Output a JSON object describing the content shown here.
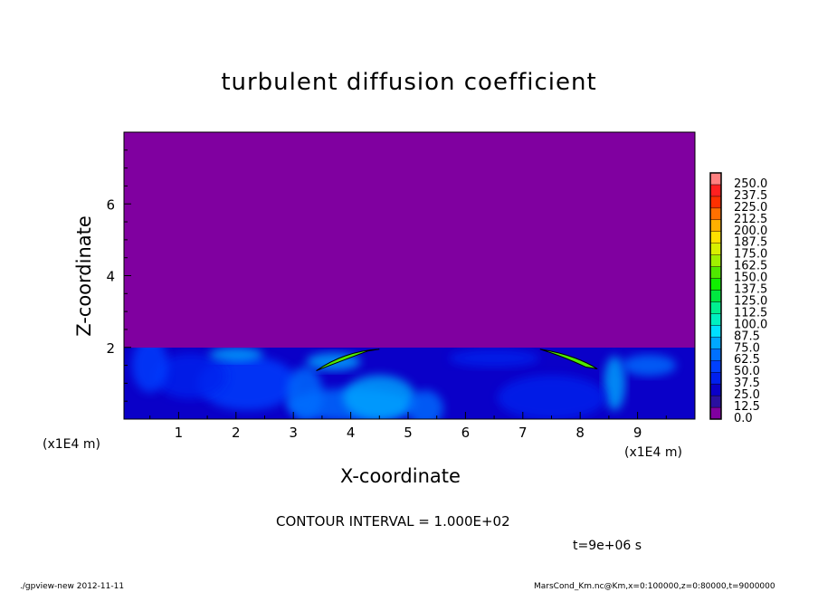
{
  "chart_data": {
    "type": "heatmap",
    "title": "turbulent diffusion coefficient",
    "xlabel": "X-coordinate",
    "ylabel": "Z-coordinate",
    "x_unit_label": "(x1E4 m)",
    "xlim": [
      0,
      10
    ],
    "ylim": [
      0,
      8
    ],
    "xticks": [
      1,
      2,
      3,
      4,
      5,
      6,
      7,
      8,
      9
    ],
    "yticks": [
      2,
      4,
      6
    ],
    "colorbar": {
      "levels": [
        "0.0",
        "12.5",
        "25.0",
        "37.5",
        "50.0",
        "62.5",
        "75.0",
        "87.5",
        "100.0",
        "112.5",
        "125.0",
        "137.5",
        "150.0",
        "162.5",
        "175.0",
        "187.5",
        "200.0",
        "212.5",
        "225.0",
        "237.5",
        "250.0"
      ],
      "colors": [
        "#8000a0",
        "#2a10a0",
        "#0a00c8",
        "#0020ee",
        "#0040ff",
        "#0070ff",
        "#00a8ff",
        "#00e0ff",
        "#00f0c0",
        "#00f090",
        "#00e840",
        "#10f000",
        "#50e800",
        "#a0f000",
        "#d8f000",
        "#ffe000",
        "#ffb000",
        "#ff7000",
        "#ff3000",
        "#ff2020",
        "#ff8080"
      ]
    },
    "field_description_values": {
      "above_z2": 0.0,
      "boundary_layer_range": [
        12.5,
        150.0
      ]
    }
  },
  "annotations": {
    "contour_interval": "CONTOUR INTERVAL = 1.000E+02",
    "time": "t=9e+06 s",
    "footer_left": "./gpview-new  2012-11-11",
    "footer_right": "MarsCond_Km.nc@Km,x=0:100000,z=0:80000,t=9000000"
  }
}
